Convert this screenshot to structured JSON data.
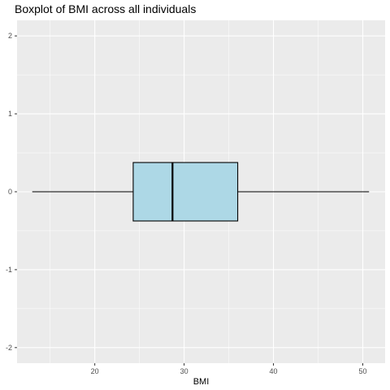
{
  "chart_data": {
    "type": "boxplot",
    "title": "Boxplot of BMI across all individuals",
    "xlabel": "BMI",
    "ylabel": "",
    "xlim": [
      11.3,
      52.5
    ],
    "ylim": [
      -2.2,
      2.2
    ],
    "x_ticks": [
      20,
      30,
      40,
      50
    ],
    "y_ticks": [
      -2,
      -1,
      0,
      1,
      2
    ],
    "y_tick_labels": [
      "-2",
      "-1",
      "0",
      "1",
      "2"
    ],
    "box": {
      "min": 13.0,
      "q1": 24.3,
      "median": 28.7,
      "q3": 36.0,
      "max": 50.7,
      "y_center": 0,
      "half_width": 0.375
    },
    "grid": true,
    "legend": "none",
    "colors": {
      "panel_background": "#ebebeb",
      "grid": "#ffffff",
      "box_fill": "#add8e6",
      "box_stroke": "#000000"
    }
  }
}
